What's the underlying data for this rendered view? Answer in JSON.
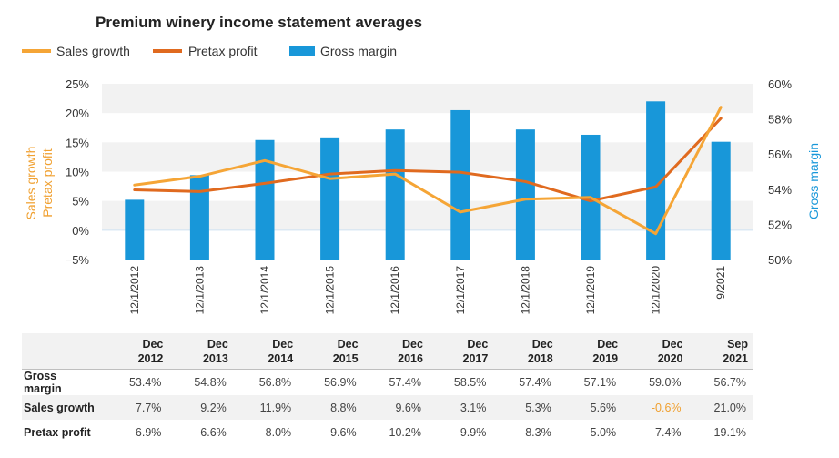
{
  "chart_data": {
    "type": "bar+line",
    "title": "Premium winery income statement averages",
    "categories": [
      "12/1/2012",
      "12/1/2013",
      "12/1/2014",
      "12/1/2015",
      "12/1/2016",
      "12/1/2017",
      "12/1/2018",
      "12/1/2019",
      "12/1/2020",
      "9/2021"
    ],
    "series": [
      {
        "name": "Sales growth",
        "kind": "line",
        "axis": "left",
        "color": "#f5a536",
        "values": [
          7.7,
          9.2,
          11.9,
          8.8,
          9.6,
          3.1,
          5.3,
          5.6,
          -0.6,
          21.0
        ]
      },
      {
        "name": "Pretax profit",
        "kind": "line",
        "axis": "left",
        "color": "#e06a1f",
        "values": [
          6.9,
          6.6,
          8.0,
          9.6,
          10.2,
          9.9,
          8.3,
          5.0,
          7.4,
          19.1
        ]
      },
      {
        "name": "Gross margin",
        "kind": "bar",
        "axis": "right",
        "color": "#1897d9",
        "values": [
          53.4,
          54.8,
          56.8,
          56.9,
          57.4,
          58.5,
          57.4,
          57.1,
          59.0,
          56.7
        ]
      }
    ],
    "left_axis": {
      "label_line1": "Sales growth",
      "label_line2": "Pretax profit",
      "min": -5,
      "max": 25,
      "ticks": [
        "25%",
        "20%",
        "15%",
        "10%",
        "5%",
        "0%",
        "−5%"
      ]
    },
    "right_axis": {
      "label": "Gross margin",
      "min": 50,
      "max": 60,
      "ticks": [
        "60%",
        "58%",
        "56%",
        "54%",
        "52%",
        "50%"
      ]
    },
    "legend_position": "top-left"
  },
  "table": {
    "headers": [
      {
        "l1": "Dec",
        "l2": "2012"
      },
      {
        "l1": "Dec",
        "l2": "2013"
      },
      {
        "l1": "Dec",
        "l2": "2014"
      },
      {
        "l1": "Dec",
        "l2": "2015"
      },
      {
        "l1": "Dec",
        "l2": "2016"
      },
      {
        "l1": "Dec",
        "l2": "2017"
      },
      {
        "l1": "Dec",
        "l2": "2018"
      },
      {
        "l1": "Dec",
        "l2": "2019"
      },
      {
        "l1": "Dec",
        "l2": "2020"
      },
      {
        "l1": "Sep",
        "l2": "2021"
      }
    ],
    "rows": [
      {
        "label": "Gross margin",
        "cells": [
          "53.4%",
          "54.8%",
          "56.8%",
          "56.9%",
          "57.4%",
          "58.5%",
          "57.4%",
          "57.1%",
          "59.0%",
          "56.7%"
        ]
      },
      {
        "label": "Sales growth",
        "cells": [
          "7.7%",
          "9.2%",
          "11.9%",
          "8.8%",
          "9.6%",
          "3.1%",
          "5.3%",
          "5.6%",
          "-0.6%",
          "21.0%"
        ]
      },
      {
        "label": "Pretax profit",
        "cells": [
          "6.9%",
          "6.6%",
          "8.0%",
          "9.6%",
          "10.2%",
          "9.9%",
          "8.3%",
          "5.0%",
          "7.4%",
          "19.1%"
        ]
      }
    ],
    "negative_color": "#f0a030"
  }
}
